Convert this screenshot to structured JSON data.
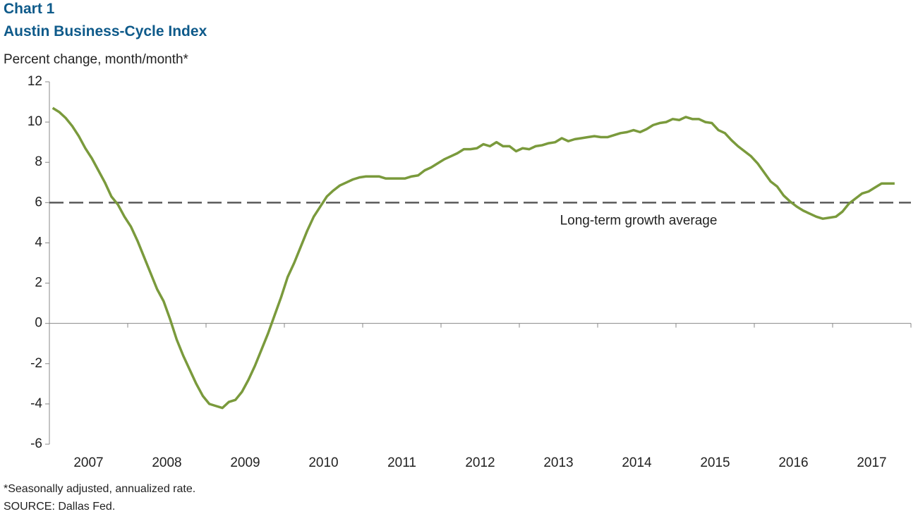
{
  "chart_data": {
    "type": "line",
    "chart_label": "Chart 1",
    "title": "Austin Business-Cycle Index",
    "y_axis_label": "Percent change, month/month*",
    "footnote": "*Seasonally adjusted, annualized rate.",
    "source": "SOURCE: Dallas Fed.",
    "categories": [
      null,
      null,
      null,
      null,
      null,
      null,
      "2007",
      null,
      null,
      null,
      null,
      null,
      null,
      null,
      null,
      null,
      null,
      null,
      "2008",
      null,
      null,
      null,
      null,
      null,
      null,
      null,
      null,
      null,
      null,
      null,
      "2009",
      null,
      null,
      null,
      null,
      null,
      null,
      null,
      null,
      null,
      null,
      null,
      "2010",
      null,
      null,
      null,
      null,
      null,
      null,
      null,
      null,
      null,
      null,
      null,
      "2011",
      null,
      null,
      null,
      null,
      null,
      null,
      null,
      null,
      null,
      null,
      null,
      "2012",
      null,
      null,
      null,
      null,
      null,
      null,
      null,
      null,
      null,
      null,
      null,
      "2013",
      null,
      null,
      null,
      null,
      null,
      null,
      null,
      null,
      null,
      null,
      null,
      "2014",
      null,
      null,
      null,
      null,
      null,
      null,
      null,
      null,
      null,
      null,
      null,
      "2015",
      null,
      null,
      null,
      null,
      null,
      null,
      null,
      null,
      null,
      null,
      null,
      "2016",
      null,
      null,
      null,
      null,
      null,
      null,
      null,
      null,
      null,
      null,
      null,
      "2017",
      null,
      null,
      null,
      null,
      null
    ],
    "series": [
      {
        "name": "Austin Business-Cycle Index",
        "color": "#7a9a3c",
        "values": [
          10.7,
          10.5,
          10.2,
          9.8,
          9.3,
          8.7,
          8.2,
          7.6,
          7.0,
          6.3,
          5.9,
          5.3,
          4.8,
          4.1,
          3.3,
          2.5,
          1.7,
          1.1,
          0.2,
          -0.8,
          -1.6,
          -2.3,
          -3.0,
          -3.6,
          -4.0,
          -4.1,
          -4.2,
          -3.9,
          -3.8,
          -3.4,
          -2.8,
          -2.1,
          -1.3,
          -0.5,
          0.4,
          1.3,
          2.3,
          3.0,
          3.8,
          4.6,
          5.3,
          5.8,
          6.3,
          6.6,
          6.85,
          7.0,
          7.15,
          7.25,
          7.3,
          7.3,
          7.3,
          7.2,
          7.2,
          7.2,
          7.2,
          7.3,
          7.35,
          7.6,
          7.75,
          7.95,
          8.15,
          8.3,
          8.45,
          8.65,
          8.65,
          8.7,
          8.9,
          8.8,
          9.0,
          8.8,
          8.8,
          8.55,
          8.7,
          8.65,
          8.8,
          8.85,
          8.95,
          9.0,
          9.2,
          9.05,
          9.15,
          9.2,
          9.25,
          9.3,
          9.25,
          9.25,
          9.35,
          9.45,
          9.5,
          9.6,
          9.5,
          9.65,
          9.85,
          9.95,
          10.0,
          10.15,
          10.1,
          10.25,
          10.15,
          10.15,
          10.0,
          9.95,
          9.6,
          9.45,
          9.1,
          8.8,
          8.55,
          8.3,
          7.95,
          7.5,
          7.05,
          6.8,
          6.35,
          6.05,
          5.8,
          5.6,
          5.45,
          5.3,
          5.2,
          5.25,
          5.3,
          5.55,
          5.95,
          6.2,
          6.45,
          6.55,
          6.75,
          6.95,
          6.95,
          6.95,
          null,
          null
        ]
      }
    ],
    "reference_line": {
      "value": 6,
      "label": "Long-term growth average",
      "color": "#595959"
    },
    "ylim": [
      -6,
      12
    ],
    "yticks": [
      -6,
      -4,
      -2,
      0,
      2,
      4,
      6,
      8,
      10,
      12
    ]
  }
}
